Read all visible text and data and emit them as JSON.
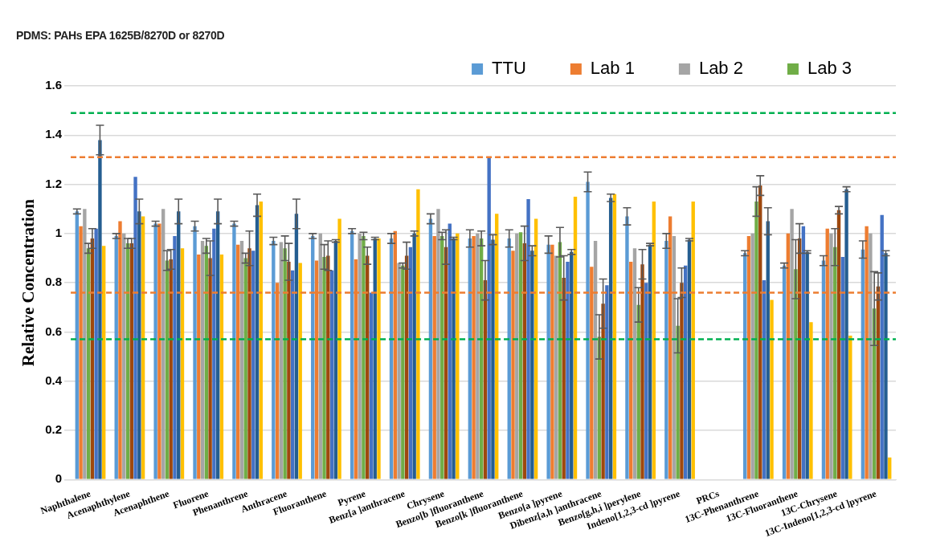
{
  "chart_data": {
    "type": "bar",
    "title": "PDMS: PAHs EPA 1625B/8270D or 8270D",
    "ylabel": "Relative Concentration",
    "categories": [
      "Naphthalene",
      "Acenaphthylene",
      "Acenaphthene",
      "Fluorene",
      "Phenanthrene",
      "Anthracene",
      "Fluoranthene",
      "Pyrene",
      "Benz[a ]anthracene",
      "Chrysene",
      "Benzo[b ]fluoranthene",
      "Benzo[k ]fluoranthene",
      "Benzo[a ]pyrene",
      "Dibenz[a,h ]anthracene",
      "Benzo[g,h,i ]perylene",
      "Indeno[1,2,3-cd ]pyrene",
      "PRCs",
      "13C-Phenanthrene",
      "13C-Fluoranthene",
      "13C-Chrysene",
      "13C-Indeno[1,2,3-cd ]pyrene"
    ],
    "series": [
      {
        "name": "TTU",
        "color": "#5b9bd5",
        "values": [
          1.09,
          0.99,
          1.04,
          1.03,
          1.04,
          0.97,
          0.99,
          1.01,
          0.98,
          1.06,
          0.98,
          0.98,
          0.955,
          1.21,
          1.07,
          0.97,
          null,
          0.92,
          0.87,
          0.89,
          0.935
        ],
        "errors": [
          0.01,
          0.01,
          0.01,
          0.02,
          0.01,
          0.015,
          0.01,
          0.01,
          0.02,
          0.02,
          0.035,
          0.035,
          0.035,
          0.04,
          0.035,
          0.03,
          null,
          0.01,
          0.01,
          0.02,
          0.035
        ]
      },
      {
        "name": "Lab 1",
        "color": "#ed7d31",
        "values": [
          1.03,
          1.05,
          1.04,
          0.915,
          0.955,
          0.8,
          0.89,
          0.895,
          1.01,
          0.99,
          0.99,
          0.93,
          0.955,
          0.865,
          0.885,
          1.07,
          null,
          0.99,
          1.0,
          1.02,
          1.03
        ]
      },
      {
        "name": "Lab 2",
        "color": "#a5a5a5",
        "values": [
          1.1,
          1.0,
          1.1,
          0.97,
          0.97,
          0.965,
          1.0,
          1.0,
          0.88,
          1.1,
          1.0,
          1.0,
          0.91,
          0.97,
          0.94,
          0.99,
          null,
          1.0,
          1.1,
          1.0,
          1.0
        ]
      },
      {
        "name": "Lab 3",
        "color": "#70ad47",
        "values": [
          0.94,
          0.96,
          0.89,
          0.95,
          0.9,
          0.94,
          0.905,
          0.99,
          0.87,
          0.99,
          0.98,
          1.005,
          0.965,
          0.58,
          0.71,
          0.625,
          null,
          1.13,
          0.855,
          0.945,
          0.695
        ],
        "errors": [
          0.02,
          0.02,
          0.04,
          0.03,
          0.02,
          0.05,
          0.05,
          0.015,
          0.01,
          0.015,
          0.03,
          null,
          0.06,
          0.09,
          0.07,
          0.11,
          null,
          0.06,
          0.12,
          0.075,
          0.15
        ]
      },
      {
        "color": "#9e480e",
        "values": [
          0.98,
          0.96,
          0.895,
          0.9,
          0.94,
          0.885,
          0.91,
          0.91,
          0.91,
          0.945,
          0.81,
          0.96,
          0.82,
          0.715,
          0.875,
          0.8,
          null,
          1.195,
          0.98,
          1.095,
          0.785
        ],
        "errors": [
          0.04,
          0.02,
          0.04,
          0.07,
          0.07,
          0.075,
          0.06,
          0.035,
          0.055,
          0.07,
          0.08,
          0.07,
          0.09,
          0.1,
          0.06,
          0.06,
          null,
          0.04,
          0.06,
          0.015,
          0.055
        ]
      },
      {
        "color": "#4472c4",
        "values": [
          1.02,
          1.23,
          0.99,
          1.02,
          0.93,
          0.85,
          0.85,
          0.76,
          0.945,
          1.04,
          1.31,
          1.14,
          0.885,
          0.79,
          0.8,
          0.87,
          null,
          0.81,
          1.03,
          0.905,
          1.075
        ]
      },
      {
        "color": "#255e91",
        "values": [
          1.38,
          1.09,
          1.09,
          1.09,
          1.115,
          1.08,
          0.97,
          0.98,
          1.0,
          0.98,
          0.975,
          0.93,
          0.925,
          1.145,
          0.955,
          0.975,
          null,
          1.05,
          0.925,
          1.18,
          0.92
        ],
        "errors": [
          0.06,
          0.05,
          0.05,
          0.05,
          0.045,
          0.06,
          0.005,
          0.005,
          0.01,
          0.005,
          0.02,
          0.02,
          0.01,
          0.015,
          0.005,
          0.005,
          null,
          0.055,
          0.005,
          0.01,
          0.01
        ]
      },
      {
        "color": "#ffc000",
        "values": [
          0.95,
          1.07,
          0.94,
          0.915,
          1.13,
          0.88,
          1.06,
          0.98,
          1.18,
          1.0,
          1.08,
          1.06,
          1.15,
          1.16,
          1.13,
          1.13,
          null,
          0.73,
          0.64,
          0.585,
          0.09
        ]
      }
    ],
    "ylim": [
      0,
      1.6
    ],
    "yticks": [
      0,
      0.2,
      0.4,
      0.6,
      0.8,
      1,
      1.2,
      1.4,
      1.6
    ],
    "grid": "y",
    "legend": "top",
    "ref_lines": [
      {
        "axis": "y",
        "value": 1.49,
        "color": "#00b050",
        "line_style": "dashed"
      },
      {
        "axis": "y",
        "value": 1.31,
        "color": "#ed7d31",
        "line_style": "dashed"
      },
      {
        "axis": "y",
        "value": 0.76,
        "color": "#ed7d31",
        "line_style": "dashed"
      },
      {
        "axis": "y",
        "value": 0.57,
        "color": "#00b050",
        "line_style": "dashed"
      }
    ]
  }
}
